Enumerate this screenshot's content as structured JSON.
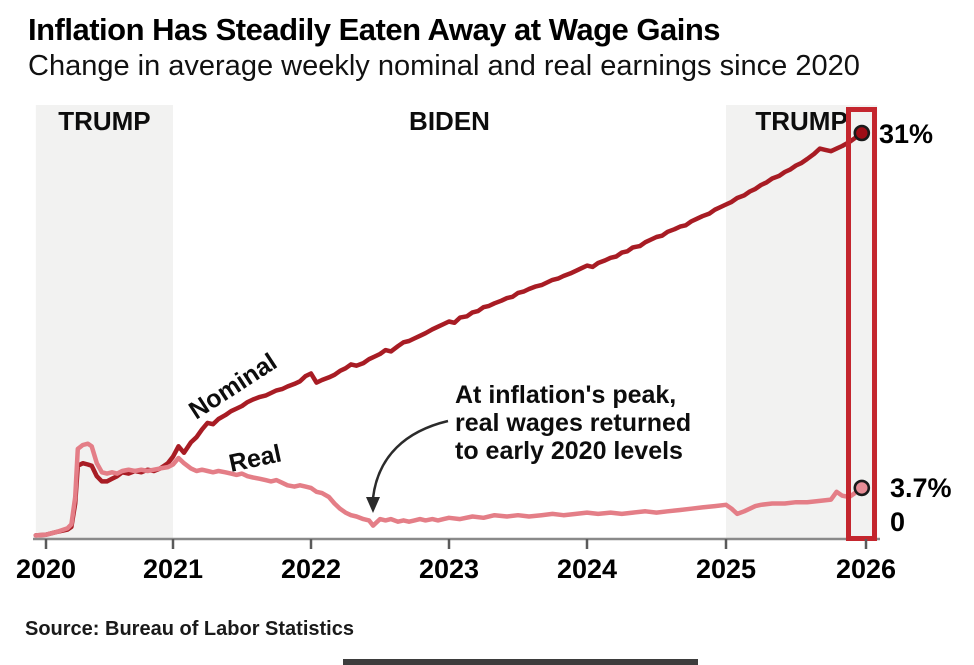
{
  "header": {
    "title": "Inflation Has Steadily Eaten Away at Wage Gains",
    "subtitle": "Change in average weekly nominal and real earnings since 2020"
  },
  "source": "Source: Bureau of Labor Statistics",
  "presidency_bands": [
    {
      "label": "TRUMP",
      "start": 2019.92,
      "end": 2021.0,
      "shaded": true
    },
    {
      "label": "BIDEN",
      "start": 2021.0,
      "end": 2025.0,
      "shaded": false
    },
    {
      "label": "TRUMP",
      "start": 2025.0,
      "end": 2026.08,
      "shaded": true
    }
  ],
  "chart_data": {
    "type": "line",
    "title": "Inflation Has Steadily Eaten Away at Wage Gains",
    "subtitle": "Change in average weekly nominal and real earnings since 2020",
    "unit": "percent change since 2020",
    "x_ticks": [
      2020,
      2021,
      2022,
      2023,
      2024,
      2025,
      2026
    ],
    "ylim": [
      0,
      33
    ],
    "grid": false,
    "band_color": "#f2f2f1",
    "highlight_box_color": "#c4262e",
    "end_labels": {
      "nominal": "31%",
      "real": "3.7%",
      "zero": "0"
    },
    "annotation": {
      "lines": [
        "At inflation's peak,",
        "real wages returned",
        "to early 2020 levels"
      ]
    },
    "series": [
      {
        "name": "Nominal",
        "color": "#a81c24",
        "end_dot_color": "#9e0d16",
        "end_value": 31,
        "points": [
          [
            2019.92,
            0.05
          ],
          [
            2020.0,
            0.1
          ],
          [
            2020.08,
            0.3
          ],
          [
            2020.17,
            0.5
          ],
          [
            2020.2,
            0.7
          ],
          [
            2020.23,
            2.5
          ],
          [
            2020.25,
            5.4
          ],
          [
            2020.29,
            5.6
          ],
          [
            2020.33,
            5.5
          ],
          [
            2020.36,
            5.4
          ],
          [
            2020.4,
            4.6
          ],
          [
            2020.44,
            4.2
          ],
          [
            2020.48,
            4.2
          ],
          [
            2020.52,
            4.4
          ],
          [
            2020.56,
            4.6
          ],
          [
            2020.6,
            4.9
          ],
          [
            2020.65,
            4.8
          ],
          [
            2020.7,
            5.0
          ],
          [
            2020.75,
            4.9
          ],
          [
            2020.8,
            5.1
          ],
          [
            2020.85,
            5.0
          ],
          [
            2020.9,
            5.2
          ],
          [
            2020.96,
            5.6
          ],
          [
            2021.0,
            6.1
          ],
          [
            2021.04,
            6.9
          ],
          [
            2021.08,
            6.4
          ],
          [
            2021.13,
            7.2
          ],
          [
            2021.17,
            7.6
          ],
          [
            2021.21,
            8.2
          ],
          [
            2021.25,
            8.7
          ],
          [
            2021.29,
            8.6
          ],
          [
            2021.33,
            9.0
          ],
          [
            2021.38,
            9.3
          ],
          [
            2021.42,
            9.6
          ],
          [
            2021.46,
            9.8
          ],
          [
            2021.5,
            10.0
          ],
          [
            2021.54,
            10.3
          ],
          [
            2021.58,
            10.5
          ],
          [
            2021.63,
            10.7
          ],
          [
            2021.67,
            10.8
          ],
          [
            2021.71,
            11.0
          ],
          [
            2021.75,
            11.2
          ],
          [
            2021.79,
            11.3
          ],
          [
            2021.83,
            11.5
          ],
          [
            2021.88,
            11.7
          ],
          [
            2021.92,
            11.9
          ],
          [
            2021.96,
            12.3
          ],
          [
            2022.0,
            12.5
          ],
          [
            2022.04,
            11.8
          ],
          [
            2022.08,
            12.0
          ],
          [
            2022.13,
            12.2
          ],
          [
            2022.17,
            12.4
          ],
          [
            2022.21,
            12.7
          ],
          [
            2022.25,
            12.9
          ],
          [
            2022.29,
            13.2
          ],
          [
            2022.33,
            13.1
          ],
          [
            2022.38,
            13.3
          ],
          [
            2022.42,
            13.6
          ],
          [
            2022.46,
            13.8
          ],
          [
            2022.5,
            14.0
          ],
          [
            2022.54,
            14.3
          ],
          [
            2022.58,
            14.2
          ],
          [
            2022.63,
            14.6
          ],
          [
            2022.67,
            14.9
          ],
          [
            2022.71,
            15.0
          ],
          [
            2022.75,
            15.2
          ],
          [
            2022.79,
            15.4
          ],
          [
            2022.83,
            15.6
          ],
          [
            2022.88,
            15.9
          ],
          [
            2022.92,
            16.1
          ],
          [
            2022.96,
            16.3
          ],
          [
            2023.0,
            16.5
          ],
          [
            2023.04,
            16.4
          ],
          [
            2023.08,
            16.8
          ],
          [
            2023.13,
            16.9
          ],
          [
            2023.17,
            17.2
          ],
          [
            2023.21,
            17.3
          ],
          [
            2023.25,
            17.6
          ],
          [
            2023.29,
            17.7
          ],
          [
            2023.33,
            17.9
          ],
          [
            2023.38,
            18.1
          ],
          [
            2023.42,
            18.3
          ],
          [
            2023.46,
            18.4
          ],
          [
            2023.5,
            18.7
          ],
          [
            2023.54,
            18.8
          ],
          [
            2023.58,
            19.0
          ],
          [
            2023.63,
            19.2
          ],
          [
            2023.67,
            19.3
          ],
          [
            2023.71,
            19.5
          ],
          [
            2023.75,
            19.7
          ],
          [
            2023.79,
            19.8
          ],
          [
            2023.83,
            20.0
          ],
          [
            2023.88,
            20.2
          ],
          [
            2023.92,
            20.4
          ],
          [
            2023.96,
            20.6
          ],
          [
            2024.0,
            20.8
          ],
          [
            2024.04,
            20.7
          ],
          [
            2024.08,
            21.0
          ],
          [
            2024.13,
            21.2
          ],
          [
            2024.17,
            21.4
          ],
          [
            2024.21,
            21.5
          ],
          [
            2024.25,
            21.8
          ],
          [
            2024.29,
            21.9
          ],
          [
            2024.33,
            22.2
          ],
          [
            2024.38,
            22.3
          ],
          [
            2024.42,
            22.6
          ],
          [
            2024.46,
            22.8
          ],
          [
            2024.5,
            23.0
          ],
          [
            2024.54,
            23.1
          ],
          [
            2024.58,
            23.4
          ],
          [
            2024.63,
            23.6
          ],
          [
            2024.67,
            23.8
          ],
          [
            2024.71,
            23.9
          ],
          [
            2024.75,
            24.2
          ],
          [
            2024.79,
            24.4
          ],
          [
            2024.83,
            24.6
          ],
          [
            2024.88,
            24.8
          ],
          [
            2024.92,
            25.1
          ],
          [
            2024.96,
            25.3
          ],
          [
            2025.0,
            25.5
          ],
          [
            2025.04,
            25.7
          ],
          [
            2025.08,
            26.0
          ],
          [
            2025.13,
            26.2
          ],
          [
            2025.17,
            26.5
          ],
          [
            2025.21,
            26.7
          ],
          [
            2025.25,
            27.0
          ],
          [
            2025.29,
            27.2
          ],
          [
            2025.33,
            27.5
          ],
          [
            2025.38,
            27.7
          ],
          [
            2025.42,
            28.0
          ],
          [
            2025.46,
            28.2
          ],
          [
            2025.5,
            28.5
          ],
          [
            2025.54,
            28.7
          ],
          [
            2025.58,
            29.0
          ],
          [
            2025.63,
            29.4
          ],
          [
            2025.67,
            29.8
          ],
          [
            2025.71,
            29.7
          ],
          [
            2025.75,
            29.6
          ],
          [
            2025.79,
            29.8
          ],
          [
            2025.83,
            30.0
          ],
          [
            2025.88,
            30.3
          ],
          [
            2025.92,
            30.6
          ],
          [
            2025.97,
            31.0
          ]
        ]
      },
      {
        "name": "Real",
        "color": "#e47e87",
        "end_dot_color": "#e78d96",
        "end_value": 3.7,
        "points": [
          [
            2019.92,
            0.05
          ],
          [
            2020.0,
            0.1
          ],
          [
            2020.08,
            0.3
          ],
          [
            2020.17,
            0.6
          ],
          [
            2020.2,
            0.9
          ],
          [
            2020.23,
            3.0
          ],
          [
            2020.25,
            6.7
          ],
          [
            2020.29,
            7.0
          ],
          [
            2020.33,
            7.1
          ],
          [
            2020.36,
            6.9
          ],
          [
            2020.4,
            5.6
          ],
          [
            2020.44,
            4.9
          ],
          [
            2020.48,
            4.8
          ],
          [
            2020.52,
            4.9
          ],
          [
            2020.56,
            4.8
          ],
          [
            2020.6,
            5.0
          ],
          [
            2020.65,
            5.1
          ],
          [
            2020.7,
            5.0
          ],
          [
            2020.75,
            5.1
          ],
          [
            2020.8,
            5.0
          ],
          [
            2020.85,
            5.1
          ],
          [
            2020.9,
            5.2
          ],
          [
            2020.96,
            5.3
          ],
          [
            2021.0,
            5.5
          ],
          [
            2021.04,
            6.0
          ],
          [
            2021.08,
            5.6
          ],
          [
            2021.13,
            5.2
          ],
          [
            2021.17,
            5.0
          ],
          [
            2021.21,
            5.1
          ],
          [
            2021.25,
            5.0
          ],
          [
            2021.29,
            4.9
          ],
          [
            2021.33,
            5.0
          ],
          [
            2021.38,
            4.9
          ],
          [
            2021.42,
            4.8
          ],
          [
            2021.46,
            4.7
          ],
          [
            2021.5,
            4.8
          ],
          [
            2021.54,
            4.6
          ],
          [
            2021.58,
            4.5
          ],
          [
            2021.63,
            4.4
          ],
          [
            2021.67,
            4.3
          ],
          [
            2021.71,
            4.2
          ],
          [
            2021.75,
            4.3
          ],
          [
            2021.79,
            4.1
          ],
          [
            2021.83,
            3.9
          ],
          [
            2021.88,
            3.8
          ],
          [
            2021.92,
            3.9
          ],
          [
            2021.96,
            3.8
          ],
          [
            2022.0,
            3.7
          ],
          [
            2022.04,
            3.4
          ],
          [
            2022.08,
            3.3
          ],
          [
            2022.13,
            3.0
          ],
          [
            2022.17,
            2.5
          ],
          [
            2022.21,
            2.1
          ],
          [
            2022.25,
            1.8
          ],
          [
            2022.29,
            1.6
          ],
          [
            2022.33,
            1.5
          ],
          [
            2022.38,
            1.3
          ],
          [
            2022.42,
            1.2
          ],
          [
            2022.45,
            0.8
          ],
          [
            2022.5,
            1.3
          ],
          [
            2022.54,
            1.2
          ],
          [
            2022.58,
            1.3
          ],
          [
            2022.63,
            1.1
          ],
          [
            2022.67,
            1.2
          ],
          [
            2022.71,
            1.1
          ],
          [
            2022.75,
            1.2
          ],
          [
            2022.79,
            1.3
          ],
          [
            2022.83,
            1.2
          ],
          [
            2022.88,
            1.3
          ],
          [
            2022.92,
            1.2
          ],
          [
            2022.96,
            1.3
          ],
          [
            2023.0,
            1.4
          ],
          [
            2023.08,
            1.3
          ],
          [
            2023.17,
            1.5
          ],
          [
            2023.25,
            1.4
          ],
          [
            2023.33,
            1.6
          ],
          [
            2023.42,
            1.5
          ],
          [
            2023.5,
            1.6
          ],
          [
            2023.58,
            1.5
          ],
          [
            2023.67,
            1.6
          ],
          [
            2023.75,
            1.7
          ],
          [
            2023.83,
            1.6
          ],
          [
            2023.92,
            1.7
          ],
          [
            2024.0,
            1.8
          ],
          [
            2024.08,
            1.7
          ],
          [
            2024.17,
            1.8
          ],
          [
            2024.25,
            1.7
          ],
          [
            2024.33,
            1.8
          ],
          [
            2024.42,
            1.9
          ],
          [
            2024.5,
            1.8
          ],
          [
            2024.58,
            1.9
          ],
          [
            2024.67,
            2.0
          ],
          [
            2024.75,
            2.1
          ],
          [
            2024.83,
            2.2
          ],
          [
            2024.92,
            2.3
          ],
          [
            2025.0,
            2.4
          ],
          [
            2025.04,
            2.1
          ],
          [
            2025.08,
            1.7
          ],
          [
            2025.13,
            1.9
          ],
          [
            2025.17,
            2.1
          ],
          [
            2025.21,
            2.3
          ],
          [
            2025.25,
            2.4
          ],
          [
            2025.33,
            2.5
          ],
          [
            2025.42,
            2.5
          ],
          [
            2025.5,
            2.6
          ],
          [
            2025.58,
            2.6
          ],
          [
            2025.67,
            2.7
          ],
          [
            2025.75,
            2.8
          ],
          [
            2025.79,
            3.4
          ],
          [
            2025.83,
            3.1
          ],
          [
            2025.88,
            3.0
          ],
          [
            2025.92,
            3.3
          ],
          [
            2025.97,
            3.7
          ]
        ]
      }
    ]
  }
}
